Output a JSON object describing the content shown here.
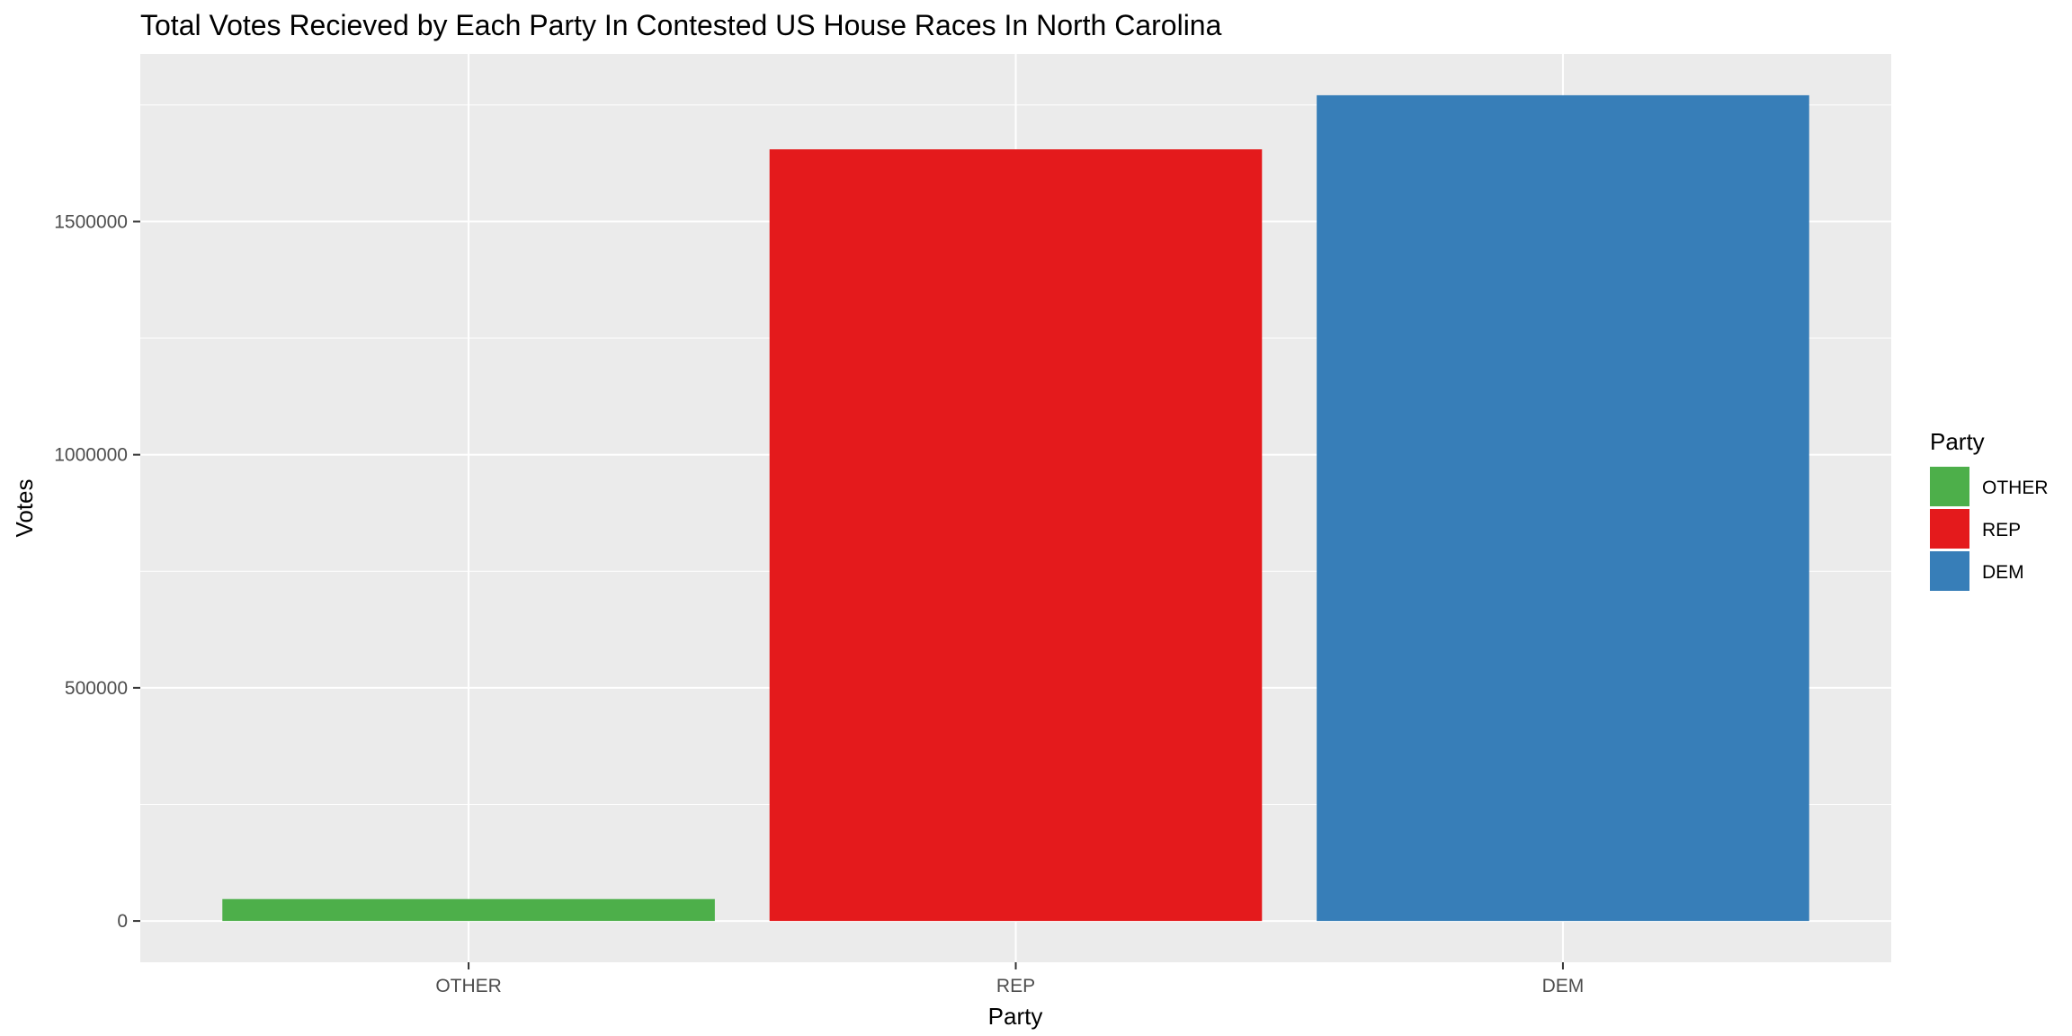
{
  "chart_data": {
    "type": "bar",
    "title": "Total Votes Recieved by Each Party In Contested US House Races In North Carolina",
    "xlabel": "Party",
    "ylabel": "Votes",
    "categories": [
      "OTHER",
      "REP",
      "DEM"
    ],
    "values": [
      47000,
      1655000,
      1771000
    ],
    "colors": [
      "#4DAF4A",
      "#E41A1C",
      "#377EB8"
    ],
    "ylim": [
      -88550,
      1859550
    ],
    "yticks": [
      0,
      500000,
      1000000,
      1500000
    ],
    "ytick_labels": [
      "0",
      "500000",
      "1000000",
      "1500000"
    ],
    "grid": true,
    "background": "#EBEBEB",
    "legend": {
      "title": "Party",
      "position": "right",
      "items": [
        {
          "label": "OTHER",
          "color": "#4DAF4A"
        },
        {
          "label": "REP",
          "color": "#E41A1C"
        },
        {
          "label": "DEM",
          "color": "#377EB8"
        }
      ]
    }
  }
}
